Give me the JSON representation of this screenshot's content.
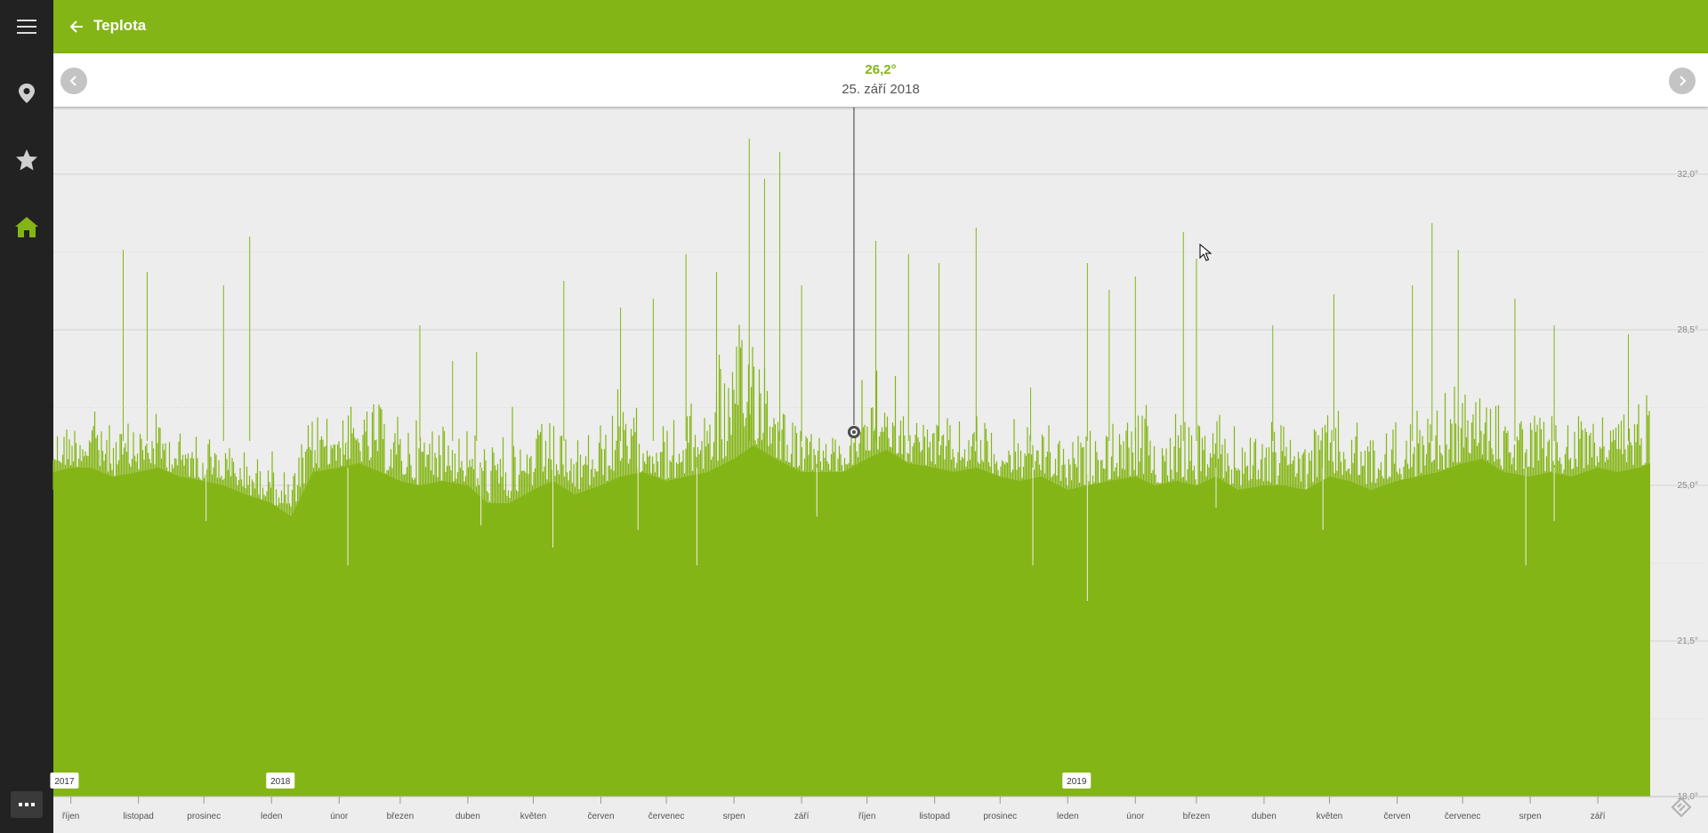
{
  "app": {
    "title": "Teplota"
  },
  "sidebar": {
    "icons": [
      "menu-icon",
      "location-pin-icon",
      "star-icon",
      "home-icon",
      "more-icon"
    ],
    "active": "home-icon",
    "active_color": "#84b516"
  },
  "colors": {
    "brand": "#84b516",
    "sidebar": "#222222",
    "plot_bg": "#ededed"
  },
  "selection": {
    "value": "26,2°",
    "date": "25. září 2018"
  },
  "chart_data": {
    "type": "area",
    "x_range": [
      "2017-09-23",
      "2019-09-25"
    ],
    "ylim": [
      18.0,
      33.5
    ],
    "ytick_values": [
      18.0,
      21.5,
      25.0,
      28.5,
      32.0
    ],
    "ytick_labels": [
      "18,0°",
      "21,5°",
      "25,0°",
      "28,5°",
      "32,0°"
    ],
    "xtick_labels": [
      "říjen",
      "listopad",
      "prosinec",
      "leden",
      "únor",
      "březen",
      "duben",
      "květen",
      "červen",
      "červenec",
      "srpen",
      "září",
      "říjen",
      "listopad",
      "prosinec",
      "leden",
      "únor",
      "březen",
      "duben",
      "květen",
      "červen",
      "červenec",
      "srpen",
      "září"
    ],
    "xtick_dates": [
      "2017-10-01",
      "2017-11-01",
      "2017-12-01",
      "2018-01-01",
      "2018-02-01",
      "2018-03-01",
      "2018-04-01",
      "2018-05-01",
      "2018-06-01",
      "2018-07-01",
      "2018-08-01",
      "2018-09-01",
      "2018-10-01",
      "2018-11-01",
      "2018-12-01",
      "2019-01-01",
      "2019-02-01",
      "2019-03-01",
      "2019-04-01",
      "2019-05-01",
      "2019-06-01",
      "2019-07-01",
      "2019-08-01",
      "2019-09-01"
    ],
    "year_labels": [
      "2017",
      "2018",
      "2019"
    ],
    "year_dates": [
      "2017-09-24",
      "2018-01-01",
      "2019-01-01"
    ],
    "selected_date": "2018-09-25",
    "selected_value": 26.2,
    "grid": true,
    "series": [
      {
        "color": "#84b516",
        "x": [
          "2017-09-23",
          "2017-10-01",
          "2017-10-10",
          "2017-10-20",
          "2017-11-01",
          "2017-11-10",
          "2017-11-20",
          "2017-12-01",
          "2017-12-10",
          "2017-12-20",
          "2018-01-01",
          "2018-01-10",
          "2018-01-20",
          "2018-02-01",
          "2018-02-10",
          "2018-02-20",
          "2018-03-01",
          "2018-03-10",
          "2018-03-20",
          "2018-04-01",
          "2018-04-10",
          "2018-04-20",
          "2018-05-01",
          "2018-05-10",
          "2018-05-20",
          "2018-06-01",
          "2018-06-10",
          "2018-06-20",
          "2018-07-01",
          "2018-07-10",
          "2018-07-20",
          "2018-08-01",
          "2018-08-10",
          "2018-08-20",
          "2018-09-01",
          "2018-09-10",
          "2018-09-20",
          "2018-10-01",
          "2018-10-10",
          "2018-10-20",
          "2018-11-01",
          "2018-11-10",
          "2018-11-20",
          "2018-12-01",
          "2018-12-10",
          "2018-12-20",
          "2019-01-01",
          "2019-01-10",
          "2019-01-20",
          "2019-02-01",
          "2019-02-10",
          "2019-02-20",
          "2019-03-01",
          "2019-03-10",
          "2019-03-20",
          "2019-04-01",
          "2019-04-10",
          "2019-04-20",
          "2019-05-01",
          "2019-05-10",
          "2019-05-20",
          "2019-06-01",
          "2019-06-10",
          "2019-06-20",
          "2019-07-01",
          "2019-07-10",
          "2019-07-20",
          "2019-08-01",
          "2019-08-10",
          "2019-08-20",
          "2019-09-01",
          "2019-09-10",
          "2019-09-20",
          "2019-09-25"
        ],
        "low": [
          25.3,
          25.4,
          25.4,
          25.2,
          25.3,
          25.4,
          25.2,
          25.1,
          25.0,
          24.8,
          24.6,
          24.3,
          25.3,
          25.4,
          25.5,
          25.3,
          25.1,
          25.0,
          25.1,
          25.0,
          24.6,
          24.6,
          24.9,
          25.1,
          24.8,
          25.0,
          25.2,
          25.3,
          25.1,
          25.2,
          25.3,
          25.6,
          25.9,
          25.6,
          25.3,
          25.3,
          25.3,
          25.6,
          25.8,
          25.5,
          25.4,
          25.3,
          25.4,
          25.2,
          25.1,
          25.2,
          24.9,
          25.0,
          25.1,
          25.2,
          25.0,
          25.1,
          25.0,
          25.2,
          24.9,
          25.0,
          25.0,
          24.9,
          25.2,
          25.1,
          24.9,
          25.1,
          25.2,
          25.3,
          25.5,
          25.6,
          25.3,
          25.2,
          25.3,
          25.2,
          25.4,
          25.3,
          25.4,
          25.5
        ],
        "high": [
          26.5,
          26.6,
          26.8,
          26.4,
          26.5,
          26.7,
          26.3,
          26.2,
          26.1,
          25.9,
          25.6,
          25.3,
          26.8,
          26.9,
          26.8,
          26.9,
          26.7,
          26.6,
          26.7,
          26.5,
          26.2,
          26.3,
          26.4,
          26.6,
          26.1,
          26.6,
          26.8,
          26.9,
          26.5,
          26.8,
          27.4,
          28.3,
          29.8,
          27.6,
          26.3,
          26.2,
          26.0,
          26.8,
          27.0,
          26.8,
          26.6,
          26.5,
          26.7,
          26.4,
          26.3,
          26.5,
          26.1,
          26.3,
          26.5,
          26.7,
          26.4,
          26.6,
          26.5,
          26.8,
          26.4,
          26.6,
          26.5,
          26.3,
          26.8,
          26.6,
          26.4,
          26.6,
          26.8,
          27.0,
          27.5,
          27.3,
          26.8,
          26.6,
          26.9,
          26.5,
          26.9,
          26.8,
          27.2,
          27.5
        ],
        "spikes": [
          [
            "2017-10-25",
            30.3
          ],
          [
            "2017-11-05",
            29.8
          ],
          [
            "2017-12-10",
            29.5
          ],
          [
            "2017-12-22",
            30.6
          ],
          [
            "2018-02-05",
            24.0
          ],
          [
            "2018-03-10",
            28.6
          ],
          [
            "2018-03-25",
            27.8
          ],
          [
            "2018-04-05",
            28.0
          ],
          [
            "2018-05-15",
            29.6
          ],
          [
            "2018-06-10",
            29.0
          ],
          [
            "2018-06-25",
            29.2
          ],
          [
            "2018-07-10",
            30.2
          ],
          [
            "2018-07-24",
            29.8
          ],
          [
            "2018-08-08",
            32.8
          ],
          [
            "2018-08-15",
            31.9
          ],
          [
            "2018-08-22",
            32.5
          ],
          [
            "2018-09-01",
            29.5
          ],
          [
            "2018-10-05",
            30.5
          ],
          [
            "2018-10-20",
            30.2
          ],
          [
            "2018-11-03",
            30.0
          ],
          [
            "2018-11-20",
            30.8
          ],
          [
            "2018-12-15",
            27.2
          ],
          [
            "2019-01-10",
            30.0
          ],
          [
            "2019-01-20",
            29.4
          ],
          [
            "2019-02-01",
            29.7
          ],
          [
            "2019-02-23",
            30.7
          ],
          [
            "2019-03-01",
            30.1
          ],
          [
            "2019-04-05",
            28.6
          ],
          [
            "2019-05-03",
            29.3
          ],
          [
            "2019-06-08",
            29.5
          ],
          [
            "2019-06-17",
            30.9
          ],
          [
            "2019-06-29",
            30.3
          ],
          [
            "2019-07-25",
            29.2
          ],
          [
            "2019-08-12",
            28.6
          ],
          [
            "2019-09-15",
            28.4
          ]
        ],
        "dips": [
          [
            "2017-12-02",
            24.2
          ],
          [
            "2018-02-05",
            23.2
          ],
          [
            "2018-04-07",
            24.1
          ],
          [
            "2018-05-10",
            23.6
          ],
          [
            "2018-06-18",
            24.0
          ],
          [
            "2018-07-15",
            23.2
          ],
          [
            "2018-09-08",
            24.3
          ],
          [
            "2018-12-16",
            23.2
          ],
          [
            "2019-01-10",
            22.4
          ],
          [
            "2019-03-10",
            24.5
          ],
          [
            "2019-04-28",
            24.0
          ],
          [
            "2019-07-30",
            23.2
          ],
          [
            "2019-08-12",
            24.2
          ]
        ]
      }
    ]
  }
}
